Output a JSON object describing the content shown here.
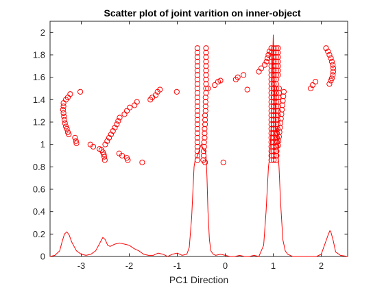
{
  "chart_data": {
    "type": "scatter",
    "title": "Scatter plot of joint varition on inner-object",
    "xlabel": "PC1 Direction",
    "ylabel": "",
    "xlim": [
      -3.65,
      2.55
    ],
    "ylim": [
      0,
      2.1
    ],
    "xticks": [
      -3,
      -2,
      -1,
      0,
      1,
      2
    ],
    "yticks": [
      0,
      0.2,
      0.4,
      0.6,
      0.8,
      1,
      1.2,
      1.4,
      1.6,
      1.8,
      2
    ],
    "ytick_labels": [
      "0",
      "0.2",
      "0.4",
      "0.6",
      "0.8",
      "1",
      "1.2",
      "1.4",
      "1.6",
      "1.8",
      "2"
    ],
    "grid": false,
    "box": true,
    "color": "#ff0000",
    "marker": "open-circle",
    "series": [
      {
        "type": "scatter",
        "points": [
          [
            -3.37,
            1.37
          ],
          [
            -3.37,
            1.34
          ],
          [
            -3.38,
            1.31
          ],
          [
            -3.37,
            1.28
          ],
          [
            -3.36,
            1.25
          ],
          [
            -3.35,
            1.22
          ],
          [
            -3.34,
            1.19
          ],
          [
            -3.32,
            1.16
          ],
          [
            -3.3,
            1.14
          ],
          [
            -3.28,
            1.11
          ],
          [
            -3.26,
            1.09
          ],
          [
            -3.13,
            1.06
          ],
          [
            -3.11,
            1.03
          ],
          [
            -3.1,
            1.01
          ],
          [
            -3.32,
            1.4
          ],
          [
            -3.28,
            1.42
          ],
          [
            -3.23,
            1.45
          ],
          [
            -3.02,
            1.47
          ],
          [
            -2.81,
            1.0
          ],
          [
            -2.75,
            0.98
          ],
          [
            -2.62,
            0.96
          ],
          [
            -2.58,
            0.95
          ],
          [
            -2.55,
            0.93
          ],
          [
            -2.53,
            0.91
          ],
          [
            -2.52,
            0.89
          ],
          [
            -2.51,
            0.86
          ],
          [
            -2.5,
            1.0
          ],
          [
            -2.46,
            1.03
          ],
          [
            -2.42,
            1.06
          ],
          [
            -2.38,
            1.09
          ],
          [
            -2.34,
            1.12
          ],
          [
            -2.3,
            1.15
          ],
          [
            -2.26,
            1.18
          ],
          [
            -2.23,
            1.21
          ],
          [
            -2.2,
            1.24
          ],
          [
            -2.21,
            0.92
          ],
          [
            -2.15,
            0.9
          ],
          [
            -2.05,
            0.88
          ],
          [
            -2.03,
            0.86
          ],
          [
            -2.1,
            1.27
          ],
          [
            -2.05,
            1.3
          ],
          [
            -1.99,
            1.33
          ],
          [
            -1.89,
            1.35
          ],
          [
            -1.84,
            1.38
          ],
          [
            -1.73,
            0.84
          ],
          [
            -1.56,
            1.4
          ],
          [
            -1.52,
            1.42
          ],
          [
            -1.45,
            1.44
          ],
          [
            -1.41,
            1.47
          ],
          [
            -1.36,
            1.49
          ],
          [
            -1.01,
            1.47
          ],
          [
            -0.58,
            1.86
          ],
          [
            -0.58,
            1.82
          ],
          [
            -0.58,
            1.78
          ],
          [
            -0.58,
            1.74
          ],
          [
            -0.58,
            1.7
          ],
          [
            -0.58,
            1.66
          ],
          [
            -0.58,
            1.62
          ],
          [
            -0.58,
            1.58
          ],
          [
            -0.58,
            1.54
          ],
          [
            -0.58,
            1.5
          ],
          [
            -0.58,
            1.46
          ],
          [
            -0.58,
            1.42
          ],
          [
            -0.58,
            1.38
          ],
          [
            -0.58,
            1.34
          ],
          [
            -0.58,
            1.3
          ],
          [
            -0.58,
            1.26
          ],
          [
            -0.58,
            1.22
          ],
          [
            -0.58,
            1.18
          ],
          [
            -0.58,
            1.14
          ],
          [
            -0.58,
            1.1
          ],
          [
            -0.58,
            1.06
          ],
          [
            -0.58,
            1.02
          ],
          [
            -0.58,
            0.98
          ],
          [
            -0.58,
            0.94
          ],
          [
            -0.58,
            0.9
          ],
          [
            -0.58,
            0.86
          ],
          [
            -0.4,
            1.86
          ],
          [
            -0.4,
            1.82
          ],
          [
            -0.4,
            1.78
          ],
          [
            -0.4,
            1.74
          ],
          [
            -0.4,
            1.7
          ],
          [
            -0.4,
            1.66
          ],
          [
            -0.4,
            1.62
          ],
          [
            -0.4,
            1.58
          ],
          [
            -0.4,
            1.54
          ],
          [
            -0.4,
            1.5
          ],
          [
            -0.4,
            1.46
          ],
          [
            -0.41,
            1.42
          ],
          [
            -0.41,
            1.38
          ],
          [
            -0.41,
            1.34
          ],
          [
            -0.41,
            1.3
          ],
          [
            -0.42,
            1.26
          ],
          [
            -0.42,
            1.22
          ],
          [
            -0.42,
            1.18
          ],
          [
            -0.43,
            1.14
          ],
          [
            -0.43,
            1.1
          ],
          [
            -0.43,
            1.06
          ],
          [
            -0.44,
            1.02
          ],
          [
            -0.44,
            0.98
          ],
          [
            -0.45,
            0.94
          ],
          [
            -0.45,
            0.9
          ],
          [
            -0.46,
            0.86
          ],
          [
            -0.36,
            1.5
          ],
          [
            -0.22,
            1.53
          ],
          [
            -0.15,
            1.56
          ],
          [
            -0.1,
            1.57
          ],
          [
            -0.42,
            0.84
          ],
          [
            -0.04,
            0.84
          ],
          [
            0.22,
            1.58
          ],
          [
            0.26,
            1.6
          ],
          [
            0.38,
            1.62
          ],
          [
            0.46,
            1.49
          ],
          [
            0.7,
            1.65
          ],
          [
            0.75,
            1.68
          ],
          [
            0.82,
            1.71
          ],
          [
            0.86,
            1.74
          ],
          [
            0.88,
            1.77
          ],
          [
            0.9,
            1.8
          ],
          [
            0.92,
            1.83
          ],
          [
            0.96,
            1.86
          ],
          [
            0.96,
            1.82
          ],
          [
            0.96,
            1.78
          ],
          [
            0.96,
            1.74
          ],
          [
            0.96,
            1.7
          ],
          [
            0.96,
            1.66
          ],
          [
            0.96,
            1.62
          ],
          [
            0.96,
            1.58
          ],
          [
            0.96,
            1.54
          ],
          [
            0.96,
            1.5
          ],
          [
            0.96,
            1.46
          ],
          [
            0.96,
            1.42
          ],
          [
            0.96,
            1.38
          ],
          [
            0.96,
            1.34
          ],
          [
            0.96,
            1.3
          ],
          [
            0.96,
            1.26
          ],
          [
            0.96,
            1.22
          ],
          [
            0.96,
            1.18
          ],
          [
            0.96,
            1.14
          ],
          [
            0.96,
            1.1
          ],
          [
            0.96,
            1.06
          ],
          [
            0.96,
            1.02
          ],
          [
            0.96,
            0.98
          ],
          [
            0.96,
            0.94
          ],
          [
            0.96,
            0.9
          ],
          [
            0.96,
            0.86
          ],
          [
            1.01,
            1.86
          ],
          [
            1.01,
            1.82
          ],
          [
            1.01,
            1.78
          ],
          [
            1.01,
            1.74
          ],
          [
            1.01,
            1.7
          ],
          [
            1.01,
            1.66
          ],
          [
            1.01,
            1.62
          ],
          [
            1.01,
            1.58
          ],
          [
            1.01,
            1.54
          ],
          [
            1.01,
            1.5
          ],
          [
            1.01,
            1.46
          ],
          [
            1.01,
            1.42
          ],
          [
            1.01,
            1.38
          ],
          [
            1.01,
            1.34
          ],
          [
            1.01,
            1.3
          ],
          [
            1.01,
            1.26
          ],
          [
            1.01,
            1.22
          ],
          [
            1.01,
            1.18
          ],
          [
            1.01,
            1.14
          ],
          [
            1.01,
            1.1
          ],
          [
            1.01,
            1.06
          ],
          [
            1.01,
            1.02
          ],
          [
            1.01,
            0.98
          ],
          [
            1.01,
            0.94
          ],
          [
            1.01,
            0.9
          ],
          [
            1.01,
            0.86
          ],
          [
            1.06,
            1.86
          ],
          [
            1.06,
            1.82
          ],
          [
            1.06,
            1.78
          ],
          [
            1.06,
            1.74
          ],
          [
            1.06,
            1.7
          ],
          [
            1.06,
            1.66
          ],
          [
            1.06,
            1.62
          ],
          [
            1.06,
            1.58
          ],
          [
            1.06,
            1.54
          ],
          [
            1.06,
            1.5
          ],
          [
            1.06,
            1.46
          ],
          [
            1.06,
            1.42
          ],
          [
            1.06,
            1.38
          ],
          [
            1.06,
            1.34
          ],
          [
            1.06,
            1.3
          ],
          [
            1.06,
            1.26
          ],
          [
            1.06,
            1.22
          ],
          [
            1.06,
            1.18
          ],
          [
            1.06,
            1.14
          ],
          [
            1.06,
            1.1
          ],
          [
            1.06,
            1.06
          ],
          [
            1.06,
            1.02
          ],
          [
            1.06,
            0.98
          ],
          [
            1.06,
            0.94
          ],
          [
            1.06,
            0.9
          ],
          [
            1.06,
            0.86
          ],
          [
            1.1,
            1.86
          ],
          [
            1.1,
            1.82
          ],
          [
            1.1,
            1.78
          ],
          [
            1.1,
            1.74
          ],
          [
            1.1,
            1.7
          ],
          [
            1.1,
            1.66
          ],
          [
            1.1,
            1.62
          ],
          [
            1.12,
            1.5
          ],
          [
            1.12,
            1.46
          ],
          [
            1.11,
            1.42
          ],
          [
            1.11,
            1.38
          ],
          [
            1.1,
            1.34
          ],
          [
            1.1,
            1.3
          ],
          [
            1.1,
            1.26
          ],
          [
            1.09,
            1.22
          ],
          [
            1.09,
            1.18
          ],
          [
            1.09,
            1.14
          ],
          [
            1.08,
            1.1
          ],
          [
            1.08,
            1.06
          ],
          [
            1.08,
            1.02
          ],
          [
            1.07,
            0.98
          ],
          [
            1.07,
            0.94
          ],
          [
            1.07,
            0.9
          ],
          [
            1.22,
            1.47
          ],
          [
            1.21,
            1.43
          ],
          [
            1.2,
            1.39
          ],
          [
            1.19,
            1.35
          ],
          [
            1.18,
            1.31
          ],
          [
            1.17,
            1.27
          ],
          [
            1.16,
            1.23
          ],
          [
            1.15,
            1.19
          ],
          [
            1.14,
            1.15
          ],
          [
            1.13,
            1.11
          ],
          [
            1.12,
            1.07
          ],
          [
            1.11,
            1.03
          ],
          [
            1.1,
            0.99
          ],
          [
            1.78,
            1.5
          ],
          [
            1.82,
            1.53
          ],
          [
            1.88,
            1.56
          ],
          [
            2.1,
            1.86
          ],
          [
            2.14,
            1.83
          ],
          [
            2.17,
            1.8
          ],
          [
            2.2,
            1.77
          ],
          [
            2.22,
            1.74
          ],
          [
            2.24,
            1.71
          ],
          [
            2.25,
            1.68
          ],
          [
            2.25,
            1.65
          ],
          [
            2.24,
            1.62
          ],
          [
            2.22,
            1.59
          ],
          [
            2.2,
            1.57
          ],
          [
            2.17,
            1.54
          ]
        ]
      },
      {
        "type": "line",
        "x": [
          -3.65,
          -3.55,
          -3.45,
          -3.4,
          -3.35,
          -3.3,
          -3.25,
          -3.2,
          -3.1,
          -3.0,
          -2.9,
          -2.8,
          -2.7,
          -2.6,
          -2.55,
          -2.5,
          -2.45,
          -2.4,
          -2.3,
          -2.2,
          -2.1,
          -2.0,
          -1.9,
          -1.8,
          -1.7,
          -1.6,
          -1.5,
          -1.4,
          -1.3,
          -1.2,
          -1.1,
          -1.0,
          -0.9,
          -0.8,
          -0.75,
          -0.7,
          -0.65,
          -0.62,
          -0.6,
          -0.58,
          -0.56,
          -0.54,
          -0.52,
          -0.5,
          -0.48,
          -0.46,
          -0.44,
          -0.42,
          -0.4,
          -0.38,
          -0.36,
          -0.33,
          -0.3,
          -0.25,
          -0.2,
          -0.1,
          0.0,
          0.1,
          0.2,
          0.3,
          0.4,
          0.5,
          0.6,
          0.7,
          0.8,
          0.85,
          0.9,
          0.93,
          0.96,
          0.98,
          1.0,
          1.02,
          1.04,
          1.06,
          1.08,
          1.1,
          1.12,
          1.15,
          1.2,
          1.25,
          1.3,
          1.4,
          1.5,
          1.6,
          1.7,
          1.8,
          1.9,
          2.0,
          2.05,
          2.1,
          2.15,
          2.18,
          2.2,
          2.25,
          2.3,
          2.4,
          2.55
        ],
        "y": [
          0.0,
          0.01,
          0.05,
          0.13,
          0.2,
          0.22,
          0.19,
          0.13,
          0.05,
          0.02,
          0.01,
          0.02,
          0.05,
          0.13,
          0.17,
          0.15,
          0.1,
          0.09,
          0.11,
          0.12,
          0.11,
          0.1,
          0.07,
          0.05,
          0.02,
          0.01,
          0.01,
          0.03,
          0.02,
          0.0,
          0.02,
          0.03,
          0.01,
          0.02,
          0.08,
          0.35,
          0.8,
          0.88,
          0.88,
          0.9,
          0.92,
          0.95,
          0.98,
          1.0,
          0.98,
          0.96,
          0.94,
          0.95,
          0.9,
          0.7,
          0.4,
          0.15,
          0.05,
          0.02,
          0.01,
          0.02,
          0.01,
          0.0,
          0.0,
          0.01,
          0.0,
          0.0,
          0.01,
          0.0,
          0.1,
          0.4,
          0.8,
          0.9,
          1.2,
          1.6,
          1.98,
          1.6,
          1.3,
          1.1,
          1.15,
          0.9,
          0.8,
          0.5,
          0.15,
          0.05,
          0.02,
          0.0,
          0.0,
          0.0,
          0.0,
          0.0,
          0.0,
          0.02,
          0.08,
          0.14,
          0.2,
          0.23,
          0.22,
          0.14,
          0.04,
          0.01,
          0.0
        ]
      }
    ]
  }
}
